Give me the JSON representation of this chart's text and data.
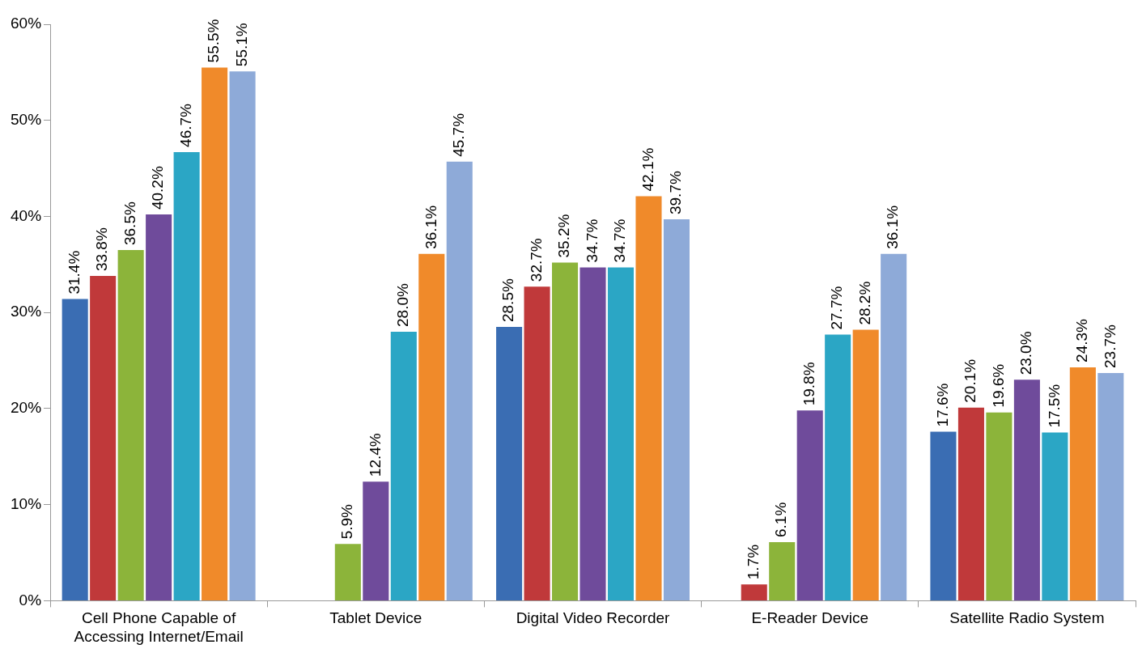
{
  "chart_data": {
    "type": "bar",
    "categories": [
      "Cell Phone Capable of Accessing Internet/Email",
      "Tablet Device",
      "Digital Video Recorder",
      "E-Reader Device",
      "Satellite Radio System"
    ],
    "series": [
      {
        "color": "#3a6db3",
        "values": [
          31.4,
          null,
          28.5,
          null,
          17.6
        ],
        "value_labels": [
          "31.4%",
          null,
          "28.5%",
          null,
          "17.6%"
        ]
      },
      {
        "color": "#c0393a",
        "values": [
          33.8,
          null,
          32.7,
          1.7,
          20.1
        ],
        "value_labels": [
          "33.8%",
          null,
          "32.7%",
          "1.7%",
          "20.1%"
        ]
      },
      {
        "color": "#8cb43a",
        "values": [
          36.5,
          5.9,
          35.2,
          6.1,
          19.6
        ],
        "value_labels": [
          "36.5%",
          "5.9%",
          "35.2%",
          "6.1%",
          "19.6%"
        ]
      },
      {
        "color": "#6f4b9b",
        "values": [
          40.2,
          12.4,
          34.7,
          19.8,
          23.0
        ],
        "value_labels": [
          "40.2%",
          "12.4%",
          "34.7%",
          "19.8%",
          "23.0%"
        ]
      },
      {
        "color": "#2ba6c5",
        "values": [
          46.7,
          28.0,
          34.7,
          27.7,
          17.5
        ],
        "value_labels": [
          "46.7%",
          "28.0%",
          "34.7%",
          "27.7%",
          "17.5%"
        ]
      },
      {
        "color": "#f08a2a",
        "values": [
          55.5,
          36.1,
          42.1,
          28.2,
          24.3
        ],
        "value_labels": [
          "55.5%",
          "36.1%",
          "42.1%",
          "28.2%",
          "24.3%"
        ]
      },
      {
        "color": "#8eaad8",
        "values": [
          55.1,
          45.7,
          39.7,
          36.1,
          23.7
        ],
        "value_labels": [
          "55.1%",
          "45.7%",
          "39.7%",
          "36.1%",
          "23.7%"
        ]
      }
    ],
    "ylim": [
      0,
      60
    ],
    "yticks": [
      {
        "value": 0,
        "label": "0%"
      },
      {
        "value": 10,
        "label": "10%"
      },
      {
        "value": 20,
        "label": "20%"
      },
      {
        "value": 30,
        "label": "30%"
      },
      {
        "value": 40,
        "label": "40%"
      },
      {
        "value": 50,
        "label": "50%"
      },
      {
        "value": 60,
        "label": "60%"
      }
    ],
    "grid": false,
    "legend": false
  }
}
